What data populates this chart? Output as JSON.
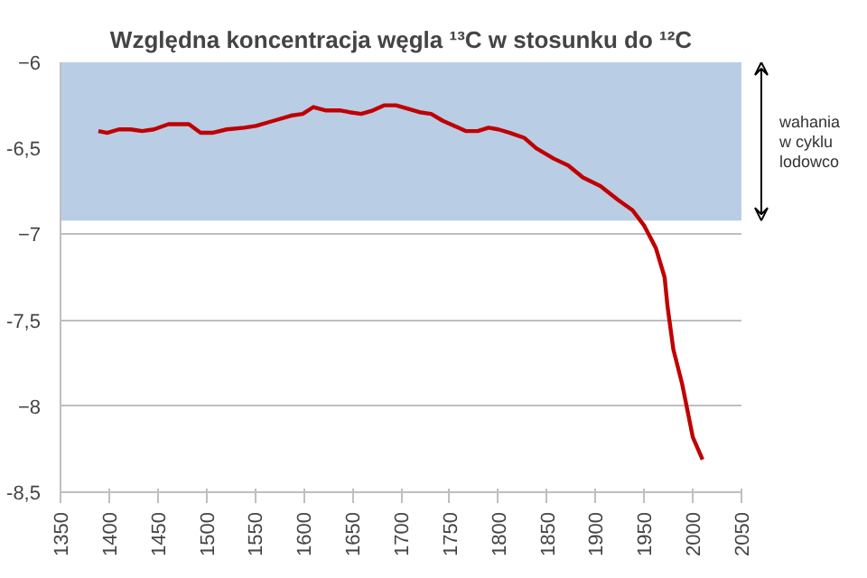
{
  "chart_data": {
    "type": "line",
    "title": "Względna koncentracja węgla ¹³C w stosunku do ¹²C",
    "x": [
      1389,
      1398,
      1410,
      1422,
      1434,
      1446,
      1461,
      1473,
      1482,
      1494,
      1506,
      1521,
      1539,
      1551,
      1569,
      1587,
      1599,
      1610,
      1623,
      1638,
      1647,
      1659,
      1671,
      1683,
      1695,
      1707,
      1719,
      1731,
      1743,
      1755,
      1767,
      1779,
      1790,
      1800,
      1812,
      1827,
      1839,
      1857,
      1872,
      1887,
      1905,
      1923,
      1938,
      1950,
      1962,
      1971,
      1974,
      1980,
      1989,
      2000,
      2010
    ],
    "series": [
      {
        "color": "#c00000",
        "values": [
          -6.4,
          -6.41,
          -6.39,
          -6.39,
          -6.4,
          -6.39,
          -6.36,
          -6.36,
          -6.36,
          -6.41,
          -6.41,
          -6.39,
          -6.38,
          -6.37,
          -6.34,
          -6.31,
          -6.3,
          -6.26,
          -6.28,
          -6.28,
          -6.29,
          -6.3,
          -6.28,
          -6.25,
          -6.25,
          -6.27,
          -6.29,
          -6.3,
          -6.34,
          -6.37,
          -6.4,
          -6.4,
          -6.38,
          -6.39,
          -6.41,
          -6.44,
          -6.5,
          -6.56,
          -6.6,
          -6.67,
          -6.72,
          -6.8,
          -6.86,
          -6.95,
          -7.08,
          -7.25,
          -7.42,
          -7.67,
          -7.87,
          -8.18,
          -8.31
        ]
      }
    ],
    "xlim": [
      1350,
      2050
    ],
    "xticks": [
      1350,
      1400,
      1450,
      1500,
      1550,
      1600,
      1650,
      1700,
      1750,
      1800,
      1850,
      1900,
      1950,
      2000,
      2050
    ],
    "ylim": [
      -8.5,
      -6
    ],
    "yticks": [
      {
        "value": -8.5,
        "label": "-8,5"
      },
      -8,
      {
        "value": -7.5,
        "label": "-7,5"
      },
      -7,
      {
        "value": -6.5,
        "label": "-6,5"
      },
      -6
    ],
    "grid": "y",
    "marker": "none",
    "line_style": "solid",
    "bands": [
      {
        "axis": "y",
        "from": -6,
        "to": -6.92,
        "label": "wahania w cyklu lodowco",
        "color": "#b9cde5"
      }
    ]
  }
}
